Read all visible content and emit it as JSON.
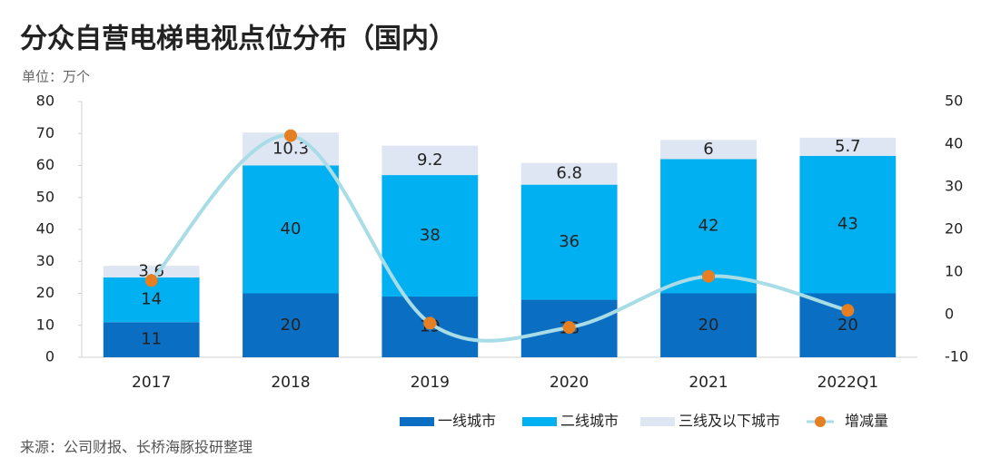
{
  "chart_data": {
    "type": "bar",
    "stacked": true,
    "title": "分众自营电梯电视点位分布（国内）",
    "y_label": "单位：万个",
    "source": "来源：公司财报、长桥海豚投研整理",
    "categories": [
      "2017",
      "2018",
      "2019",
      "2020",
      "2021",
      "2022Q1"
    ],
    "series": [
      {
        "name": "一线城市",
        "color": "#0a6fc2",
        "values": [
          11,
          20,
          19,
          18,
          20,
          20
        ]
      },
      {
        "name": "二线城市",
        "color": "#00b0f0",
        "values": [
          14,
          40,
          38,
          36,
          42,
          43
        ]
      },
      {
        "name": "三线及以下城市",
        "color": "#dde6f2",
        "values": [
          3.6,
          10.3,
          9.2,
          6.8,
          6,
          5.7
        ]
      },
      {
        "name": "增减量",
        "type": "line",
        "axis": "y2",
        "color": "#a8dce6",
        "marker_color": "#e67e22",
        "values": [
          8,
          42,
          -2,
          -3,
          9,
          1
        ]
      }
    ],
    "ylim": [
      0,
      80
    ],
    "yticks": [
      0,
      10,
      20,
      30,
      40,
      50,
      60,
      70,
      80
    ],
    "y2lim": [
      -10,
      50
    ],
    "y2ticks": [
      -10,
      0,
      10,
      20,
      30,
      40,
      50
    ],
    "grid": false,
    "legend": "bottom"
  }
}
